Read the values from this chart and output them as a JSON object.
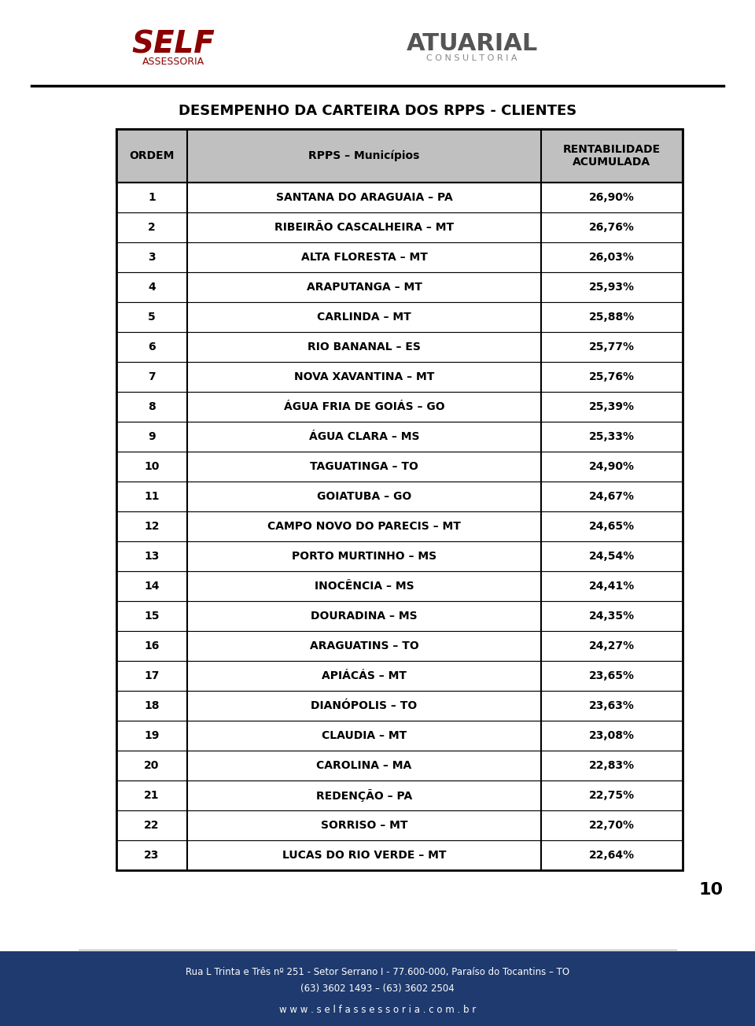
{
  "title": "DESEMPENHO DA CARTEIRA DOS RPPS - CLIENTES",
  "col_headers": [
    "ORDEM",
    "RPPS – Municípios",
    "RENTABILIDADE\nACUMULADA"
  ],
  "rows": [
    [
      "1",
      "SANTANA DO ARAGUAIA – PA",
      "26,90%"
    ],
    [
      "2",
      "RIBEIRÃO CASCALHEIRA – MT",
      "26,76%"
    ],
    [
      "3",
      "ALTA FLORESTA – MT",
      "26,03%"
    ],
    [
      "4",
      "ARAPUTANGA – MT",
      "25,93%"
    ],
    [
      "5",
      "CARLINDA – MT",
      "25,88%"
    ],
    [
      "6",
      "RIO BANANAL – ES",
      "25,77%"
    ],
    [
      "7",
      "NOVA XAVANTINA – MT",
      "25,76%"
    ],
    [
      "8",
      "ÁGUA FRIA DE GOIÁS – GO",
      "25,39%"
    ],
    [
      "9",
      "ÁGUA CLARA – MS",
      "25,33%"
    ],
    [
      "10",
      "TAGUATINGA – TO",
      "24,90%"
    ],
    [
      "11",
      "GOIATUBA – GO",
      "24,67%"
    ],
    [
      "12",
      "CAMPO NOVO DO PARECIS – MT",
      "24,65%"
    ],
    [
      "13",
      "PORTO MURTINHO – MS",
      "24,54%"
    ],
    [
      "14",
      "INOCÊNCIA – MS",
      "24,41%"
    ],
    [
      "15",
      "DOURADINA – MS",
      "24,35%"
    ],
    [
      "16",
      "ARAGUATINS – TO",
      "24,27%"
    ],
    [
      "17",
      "APIÁCÁS – MT",
      "23,65%"
    ],
    [
      "18",
      "DIANÓPOLIS – TO",
      "23,63%"
    ],
    [
      "19",
      "CLAUDIA – MT",
      "23,08%"
    ],
    [
      "20",
      "CAROLINA – MA",
      "22,83%"
    ],
    [
      "21",
      "REDENÇÃO – PA",
      "22,75%"
    ],
    [
      "22",
      "SORRISO – MT",
      "22,70%"
    ],
    [
      "23",
      "LUCAS DO RIO VERDE – MT",
      "22,64%"
    ]
  ],
  "header_bg": "#c0c0c0",
  "row_bg_odd": "#ffffff",
  "row_bg_even": "#ffffff",
  "header_text_color": "#000000",
  "row_text_color": "#000000",
  "border_color": "#000000",
  "title_color": "#000000",
  "footer_bg": "#1e3a6e",
  "footer_text_color": "#ffffff",
  "footer_line1": "Rua L Trinta e Três nº 251 - Setor Serrano I - 77.600-000, Paraíso do Tocantins – TO",
  "footer_line2": "(63) 3602 1493 – (63) 3602 2504",
  "footer_line3": "w w w . s e l f a s s e s s o r i a . c o m . b r",
  "page_number": "10",
  "page_bg": "#ffffff"
}
